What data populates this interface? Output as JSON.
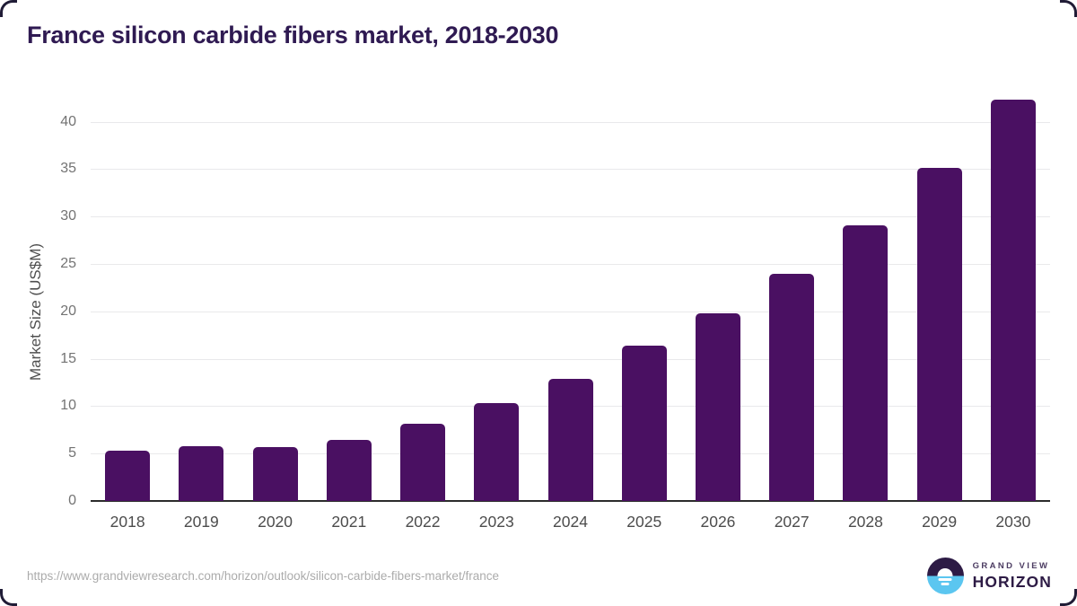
{
  "title": "France silicon carbide fibers market, 2018-2030",
  "chart_data": {
    "type": "bar",
    "title": "France silicon carbide fibers market, 2018-2030",
    "categories": [
      "2018",
      "2019",
      "2020",
      "2021",
      "2022",
      "2023",
      "2024",
      "2025",
      "2026",
      "2027",
      "2028",
      "2029",
      "2030"
    ],
    "values": [
      5.3,
      5.8,
      5.7,
      6.4,
      8.1,
      10.3,
      12.9,
      16.4,
      19.8,
      24.0,
      29.1,
      35.1,
      42.3
    ],
    "xlabel": "",
    "ylabel": "Market Size (US$M)",
    "ylim": [
      0,
      44
    ],
    "yticks": [
      0,
      5,
      10,
      15,
      20,
      25,
      30,
      35,
      40
    ],
    "grid": true,
    "legend": false,
    "bar_color": "#4A1062"
  },
  "footer": {
    "source_url": "https://www.grandviewresearch.com/horizon/outlook/silicon-carbide-fibers-market/france",
    "logo": {
      "line1": "GRAND VIEW",
      "line2": "HORIZON"
    }
  },
  "colors": {
    "bar": "#4A1062",
    "title_text": "#2F1A52",
    "gridline": "#E9E9EB",
    "axis_line": "#2B2B2B",
    "y_tick_text": "#737373",
    "x_tick_text": "#4C4C4C",
    "axis_title_text": "#4F4F4F",
    "url_text": "#ABABAB",
    "logo_navy": "#2D1B45",
    "logo_blue": "#5BC6F0",
    "logo_top_text": "#4B3B61"
  }
}
